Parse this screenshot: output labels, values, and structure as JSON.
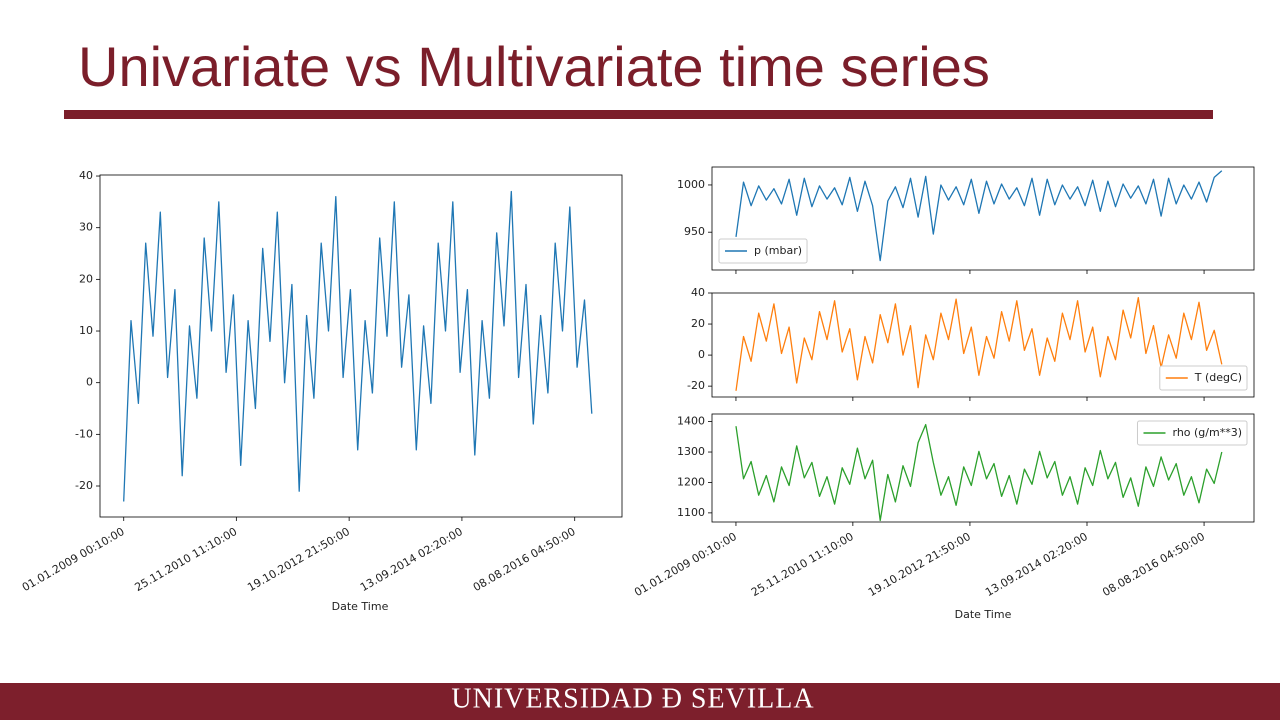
{
  "slide": {
    "title": "Univariate vs Multivariate time series",
    "footer": "UNIVERSIDAD Ð SEVILLA"
  },
  "chart_data": [
    {
      "type": "line",
      "xlabel": "Date Time",
      "color": "#1f77b4",
      "x": [
        0,
        45,
        90,
        135,
        180,
        225,
        270,
        315,
        360,
        405,
        450,
        495,
        540,
        585,
        630,
        675,
        720,
        765,
        810,
        855,
        900,
        945,
        990,
        1035,
        1080,
        1125,
        1170,
        1215,
        1260,
        1305,
        1350,
        1395,
        1440,
        1485,
        1530,
        1575,
        1620,
        1665,
        1710,
        1755,
        1800,
        1845,
        1890,
        1935,
        1980,
        2025,
        2070,
        2115,
        2160,
        2205,
        2250,
        2295,
        2340,
        2385,
        2430,
        2475,
        2520,
        2565,
        2610,
        2655,
        2700,
        2745,
        2790,
        2835,
        2880
      ],
      "values": [
        -23,
        12,
        -4,
        27,
        9,
        33,
        1,
        18,
        -18,
        11,
        -3,
        28,
        10,
        35,
        2,
        17,
        -16,
        12,
        -5,
        26,
        8,
        33,
        0,
        19,
        -21,
        13,
        -3,
        27,
        10,
        36,
        1,
        18,
        -13,
        12,
        -2,
        28,
        9,
        35,
        3,
        17,
        -13,
        11,
        -4,
        27,
        10,
        35,
        2,
        18,
        -14,
        12,
        -3,
        29,
        11,
        37,
        1,
        19,
        -8,
        13,
        -2,
        27,
        10,
        34,
        3,
        16,
        -6
      ],
      "xlim": [
        -146,
        3066
      ],
      "xticks": [
        {
          "value": 0,
          "label": "01.01.2009 00:10:00"
        },
        {
          "value": 693,
          "label": "25.11.2010 11:10:00"
        },
        {
          "value": 1387,
          "label": "19.10.2012 21:50:00"
        },
        {
          "value": 2081,
          "label": "13.09.2014 02:20:00"
        },
        {
          "value": 2775,
          "label": "08.08.2016 04:50:00"
        }
      ],
      "ylim": [
        -26,
        40.2
      ],
      "yticks": [
        -20,
        -10,
        0,
        10,
        20,
        30,
        40
      ]
    },
    {
      "type": "panels",
      "xlabel": "Date Time",
      "x": [
        0,
        45,
        90,
        135,
        180,
        225,
        270,
        315,
        360,
        405,
        450,
        495,
        540,
        585,
        630,
        675,
        720,
        765,
        810,
        855,
        900,
        945,
        990,
        1035,
        1080,
        1125,
        1170,
        1215,
        1260,
        1305,
        1350,
        1395,
        1440,
        1485,
        1530,
        1575,
        1620,
        1665,
        1710,
        1755,
        1800,
        1845,
        1890,
        1935,
        1980,
        2025,
        2070,
        2115,
        2160,
        2205,
        2250,
        2295,
        2340,
        2385,
        2430,
        2475,
        2520,
        2565,
        2610,
        2655,
        2700,
        2745,
        2790,
        2835,
        2880
      ],
      "xlim": [
        -142,
        3071
      ],
      "xticks": [
        {
          "value": 0,
          "label": "01.01.2009 00:10:00"
        },
        {
          "value": 693,
          "label": "25.11.2010 11:10:00"
        },
        {
          "value": 1387,
          "label": "19.10.2012 21:50:00"
        },
        {
          "value": 2081,
          "label": "13.09.2014 02:20:00"
        },
        {
          "value": 2775,
          "label": "08.08.2016 04:50:00"
        }
      ],
      "panels": [
        {
          "ylim": [
            910,
            1019
          ],
          "yticks": [
            950,
            1000
          ],
          "legend": "lower left",
          "series": [
            {
              "name": "p (mbar)",
              "color": "#1f77b4",
              "values": [
                945,
                1003,
                978,
                999,
                984,
                996,
                980,
                1006,
                968,
                1007,
                977,
                999,
                985,
                997,
                979,
                1008,
                972,
                1004,
                978,
                920,
                983,
                998,
                976,
                1007,
                966,
                1009,
                948,
                1000,
                984,
                998,
                979,
                1006,
                970,
                1004,
                980,
                1001,
                985,
                997,
                978,
                1007,
                968,
                1006,
                979,
                1000,
                985,
                998,
                978,
                1005,
                972,
                1004,
                977,
                1001,
                986,
                999,
                980,
                1006,
                967,
                1007,
                980,
                1000,
                985,
                1003,
                982,
                1008,
                1015
              ]
            }
          ]
        },
        {
          "ylim": [
            -27,
            40
          ],
          "yticks": [
            -20,
            0,
            20,
            40
          ],
          "legend": "lower right",
          "series": [
            {
              "name": "T (degC)",
              "color": "#ff7f0e",
              "values": [
                -23,
                12,
                -4,
                27,
                9,
                33,
                1,
                18,
                -18,
                11,
                -3,
                28,
                10,
                35,
                2,
                17,
                -16,
                12,
                -5,
                26,
                8,
                33,
                0,
                19,
                -21,
                13,
                -3,
                27,
                10,
                36,
                1,
                18,
                -13,
                12,
                -2,
                28,
                9,
                35,
                3,
                17,
                -13,
                11,
                -4,
                27,
                10,
                35,
                2,
                18,
                -14,
                12,
                -3,
                29,
                11,
                37,
                1,
                19,
                -8,
                13,
                -2,
                27,
                10,
                34,
                3,
                16,
                -6
              ]
            }
          ]
        },
        {
          "ylim": [
            1070,
            1425
          ],
          "yticks": [
            1100,
            1200,
            1300,
            1400
          ],
          "legend": "upper right",
          "series": [
            {
              "name": "rho (g/m**3)",
              "color": "#2ca02c",
              "values": [
                1385,
                1212,
                1269,
                1158,
                1223,
                1136,
                1251,
                1190,
                1320,
                1215,
                1266,
                1154,
                1219,
                1129,
                1248,
                1194,
                1313,
                1212,
                1273,
                1075,
                1226,
                1136,
                1255,
                1187,
                1331,
                1390,
                1266,
                1158,
                1219,
                1125,
                1251,
                1190,
                1302,
                1212,
                1262,
                1154,
                1223,
                1129,
                1244,
                1194,
                1302,
                1215,
                1269,
                1158,
                1219,
                1129,
                1248,
                1190,
                1305,
                1212,
                1266,
                1151,
                1215,
                1122,
                1251,
                1187,
                1284,
                1208,
                1262,
                1158,
                1219,
                1133,
                1244,
                1197,
                1300
              ]
            }
          ]
        }
      ]
    }
  ]
}
